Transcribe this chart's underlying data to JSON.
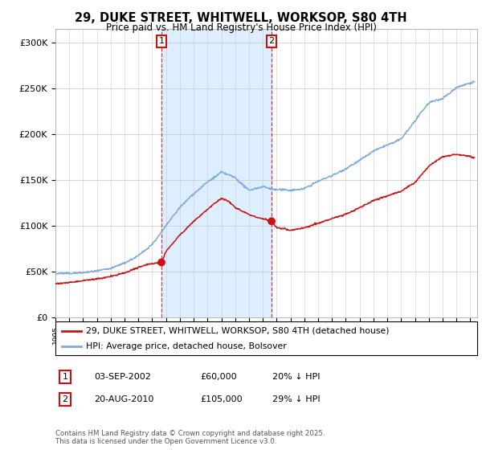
{
  "title": "29, DUKE STREET, WHITWELL, WORKSOP, S80 4TH",
  "subtitle": "Price paid vs. HM Land Registry's House Price Index (HPI)",
  "ylabel_ticks": [
    "£0",
    "£50K",
    "£100K",
    "£150K",
    "£200K",
    "£250K",
    "£300K"
  ],
  "ytick_values": [
    0,
    50000,
    100000,
    150000,
    200000,
    250000,
    300000
  ],
  "ylim": [
    0,
    315000
  ],
  "xlim_start": 1995.0,
  "xlim_end": 2025.5,
  "sale1_date": 2002.67,
  "sale1_price": 60000,
  "sale1_label": "1",
  "sale2_date": 2010.63,
  "sale2_price": 105000,
  "sale2_label": "2",
  "legend_house": "29, DUKE STREET, WHITWELL, WORKSOP, S80 4TH (detached house)",
  "legend_hpi": "HPI: Average price, detached house, Bolsover",
  "footer": "Contains HM Land Registry data © Crown copyright and database right 2025.\nThis data is licensed under the Open Government Licence v3.0.",
  "hpi_color": "#7aaadd",
  "house_color": "#cc1111",
  "bg_highlight_color": "#ddeeff",
  "sale_line_color": "#cc1111",
  "grid_color": "#cccccc",
  "background_color": "#ffffff"
}
